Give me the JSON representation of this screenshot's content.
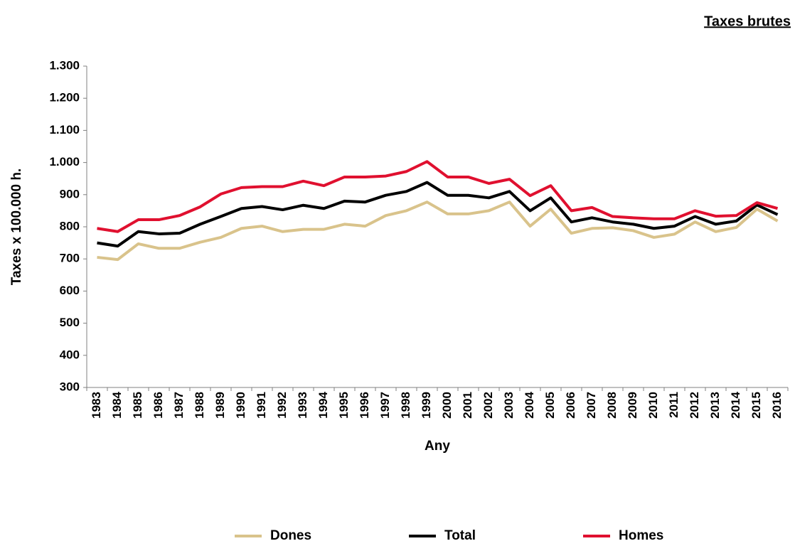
{
  "chart_data": {
    "type": "line",
    "title": "Taxes brutes",
    "ylabel": "Taxes x 100.000 h.",
    "xlabel": "Any",
    "categories": [
      "1983",
      "1984",
      "1985",
      "1986",
      "1987",
      "1988",
      "1989",
      "1990",
      "1991",
      "1992",
      "1993",
      "1994",
      "1995",
      "1996",
      "1997",
      "1998",
      "1999",
      "2000",
      "2001",
      "2002",
      "2003",
      "2004",
      "2005",
      "2006",
      "2007",
      "2008",
      "2009",
      "2010",
      "2011",
      "2012",
      "2013",
      "2014",
      "2015",
      "2016"
    ],
    "series": [
      {
        "name": "Dones",
        "color": "#d9c38b",
        "values": [
          705,
          698,
          747,
          733,
          733,
          752,
          767,
          795,
          802,
          785,
          792,
          792,
          808,
          802,
          835,
          850,
          877,
          840,
          840,
          850,
          877,
          802,
          855,
          780,
          795,
          797,
          788,
          767,
          777,
          815,
          785,
          798,
          855,
          818
        ]
      },
      {
        "name": "Total",
        "color": "#000000",
        "values": [
          750,
          740,
          785,
          778,
          780,
          808,
          832,
          857,
          863,
          853,
          867,
          857,
          880,
          877,
          898,
          910,
          938,
          898,
          898,
          890,
          910,
          850,
          890,
          815,
          828,
          815,
          808,
          795,
          802,
          832,
          808,
          818,
          868,
          838
        ]
      },
      {
        "name": "Homes",
        "color": "#e0102f",
        "values": [
          795,
          785,
          822,
          822,
          835,
          862,
          902,
          922,
          925,
          925,
          942,
          928,
          955,
          955,
          958,
          972,
          1003,
          955,
          955,
          935,
          948,
          897,
          928,
          850,
          860,
          832,
          828,
          825,
          825,
          850,
          833,
          835,
          875,
          857
        ]
      }
    ],
    "ylim": [
      300,
      1300
    ],
    "yticks": [
      300,
      400,
      500,
      600,
      700,
      800,
      900,
      {
        "value": 1000,
        "label": "1.000"
      },
      {
        "value": 1100,
        "label": "1.100"
      },
      {
        "value": 1200,
        "label": "1.200"
      },
      {
        "value": 1300,
        "label": "1.300"
      }
    ]
  }
}
